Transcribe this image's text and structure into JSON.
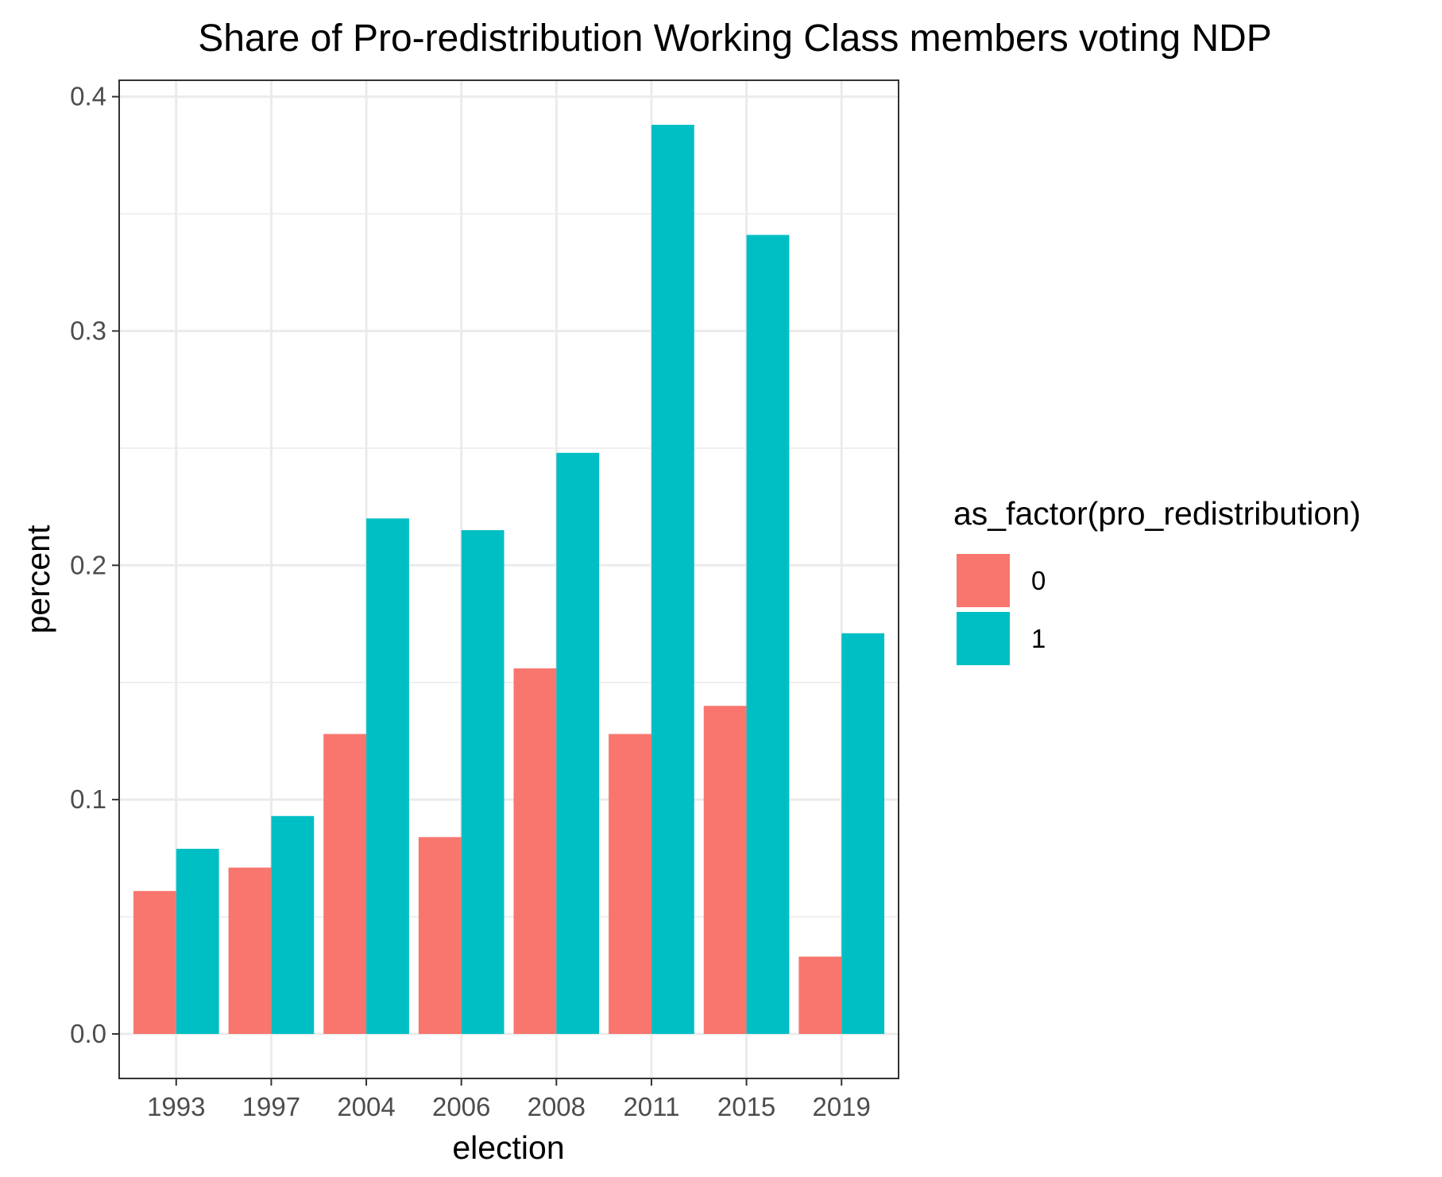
{
  "chart_data": {
    "type": "bar",
    "title": "Share of Pro-redistribution Working Class members voting NDP",
    "xlabel": "election",
    "ylabel": "percent",
    "categories": [
      "1993",
      "1997",
      "2004",
      "2006",
      "2008",
      "2011",
      "2015",
      "2019"
    ],
    "series": [
      {
        "name": "0",
        "color": "#F8766D",
        "values": [
          0.061,
          0.071,
          0.128,
          0.084,
          0.156,
          0.128,
          0.14,
          0.033
        ]
      },
      {
        "name": "1",
        "color": "#00BFC4",
        "values": [
          0.079,
          0.093,
          0.22,
          0.215,
          0.248,
          0.388,
          0.341,
          0.171
        ]
      }
    ],
    "ylim": [
      -0.019,
      0.407
    ],
    "yticks": [
      0.0,
      0.1,
      0.2,
      0.3,
      0.4
    ],
    "ytick_labels": [
      "0.0",
      "0.1",
      "0.2",
      "0.3",
      "0.4"
    ],
    "legend": {
      "title": "as_factor(pro_redistribution)",
      "placement": "right"
    },
    "grid": true,
    "panel_background": "#ffffff",
    "grid_color": "#ebebeb",
    "border_color": "#333333"
  }
}
